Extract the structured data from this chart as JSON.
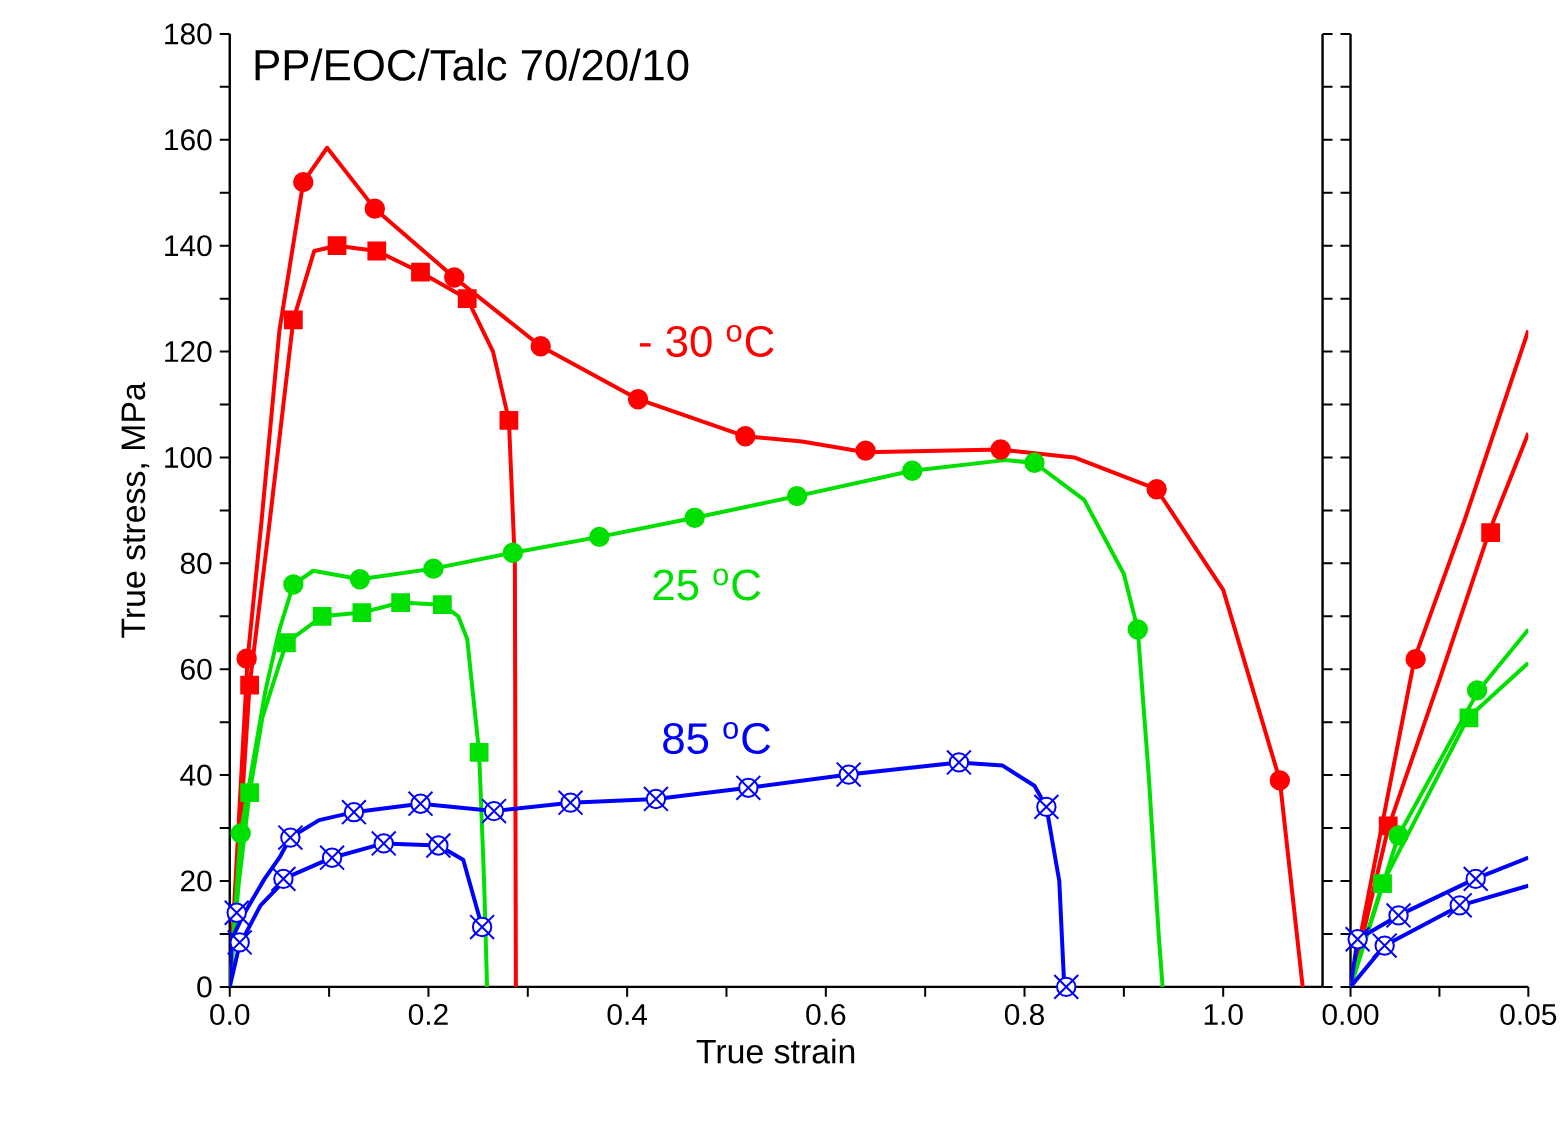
{
  "chart_data": [
    {
      "type": "line",
      "title": "PP/EOC/Talc 70/20/10",
      "xlabel": "True strain",
      "ylabel": "True stress, MPa",
      "xlim": [
        0,
        1.1
      ],
      "ylim": [
        0,
        180
      ],
      "xticks": [
        {
          "value": 0,
          "label": "0.0"
        },
        {
          "value": 0.1,
          "label": null
        },
        {
          "value": 0.2,
          "label": "0.2"
        },
        {
          "value": 0.3,
          "label": null
        },
        {
          "value": 0.4,
          "label": "0.4"
        },
        {
          "value": 0.5,
          "label": null
        },
        {
          "value": 0.6,
          "label": "0.6"
        },
        {
          "value": 0.7,
          "label": null
        },
        {
          "value": 0.8,
          "label": "0.8"
        },
        {
          "value": 0.9,
          "label": null
        },
        {
          "value": 1.0,
          "label": "1.0"
        }
      ],
      "yticks": [
        0,
        {
          "value": 10,
          "label": null
        },
        20,
        {
          "value": 30,
          "label": null
        },
        40,
        {
          "value": 50,
          "label": null
        },
        60,
        {
          "value": 70,
          "label": null
        },
        80,
        {
          "value": 90,
          "label": null
        },
        100,
        {
          "value": 110,
          "label": null
        },
        120,
        {
          "value": 130,
          "label": null
        },
        140,
        {
          "value": 150,
          "label": null
        },
        160,
        {
          "value": 170,
          "label": null
        },
        180
      ],
      "grid": false,
      "line_style": "solid",
      "annotations": [
        "- 30 $^{o}$C",
        "25 $^{o}$C",
        "85 $^{o}$C"
      ],
      "series": [
        {
          "color": "#ff0000",
          "x": [
            0,
            0.0087,
            0.018,
            0.032,
            0.05,
            0.074,
            0.098,
            0.146,
            0.226,
            0.313,
            0.411,
            0.519,
            0.576,
            0.64,
            0.776,
            0.85,
            0.933,
            1.0,
            1.057,
            1.08
          ],
          "values": [
            0,
            30,
            62,
            88,
            124,
            152,
            158.5,
            147,
            134,
            121,
            111,
            104,
            103,
            101,
            101.5,
            100,
            94,
            75,
            39,
            0
          ]
        },
        {
          "color": "#ff0000",
          "x": [
            0,
            0.0106,
            0.02,
            0.039,
            0.064,
            0.085,
            0.108,
            0.148,
            0.192,
            0.239,
            0.265,
            0.281,
            0.287,
            0.288
          ],
          "values": [
            0,
            30,
            57,
            86,
            126,
            139,
            140,
            139,
            135,
            130,
            120,
            107,
            80,
            0
          ]
        },
        {
          "color": "#00e000",
          "x": [
            0,
            0.011,
            0.036,
            0.05,
            0.064,
            0.084,
            0.131,
            0.205,
            0.285,
            0.372,
            0.468,
            0.571,
            0.687,
            0.78,
            0.81,
            0.86,
            0.9,
            0.914,
            0.925,
            0.935,
            0.939
          ],
          "values": [
            0,
            29,
            56,
            67.5,
            76,
            78.6,
            77,
            79,
            82,
            85,
            88.6,
            92.7,
            97.5,
            99.5,
            99,
            92,
            78,
            67.5,
            40,
            10,
            0
          ]
        },
        {
          "color": "#00e000",
          "x": [
            0,
            0.009,
            0.02,
            0.033,
            0.05,
            0.057,
            0.093,
            0.133,
            0.172,
            0.214,
            0.23,
            0.239,
            0.251,
            0.256,
            0.259
          ],
          "values": [
            0,
            19.5,
            36.7,
            51,
            61,
            65,
            70,
            70.7,
            72.6,
            72.2,
            70,
            65.7,
            44.3,
            20,
            0
          ]
        },
        {
          "color": "#0000ff",
          "x": [
            0,
            0.002,
            0.0135,
            0.035,
            0.05,
            0.061,
            0.09,
            0.125,
            0.192,
            0.266,
            0.343,
            0.429,
            0.522,
            0.623,
            0.734,
            0.778,
            0.81,
            0.822,
            0.835,
            0.84
          ],
          "values": [
            0,
            9,
            13.5,
            20.4,
            24.4,
            28.2,
            31.5,
            33,
            34.6,
            33.2,
            34.8,
            35.5,
            37.6,
            40.1,
            42.4,
            41.8,
            38,
            34,
            20,
            0
          ]
        },
        {
          "color": "#0000ff",
          "x": [
            0,
            0.0096,
            0.031,
            0.05,
            0.054,
            0.103,
            0.155,
            0.21,
            0.235,
            0.254
          ],
          "values": [
            0,
            7.8,
            15.4,
            19.1,
            20.4,
            24.4,
            27.1,
            26.7,
            24,
            11.3
          ]
        },
        {
          "type": "scatter",
          "color": "#ff0000",
          "marker": "circle",
          "x": [
            0.017,
            0.074,
            0.146,
            0.226,
            0.313,
            0.411,
            0.519,
            0.64,
            0.776,
            0.933,
            1.057
          ],
          "values": [
            62,
            152,
            147,
            134,
            121,
            111,
            104,
            101.3,
            101.5,
            94,
            39
          ]
        },
        {
          "type": "scatter",
          "color": "#ff0000",
          "marker": "square",
          "x": [
            0.02,
            0.064,
            0.108,
            0.148,
            0.192,
            0.239,
            0.281
          ],
          "values": [
            57,
            126,
            140,
            139,
            135,
            130,
            107
          ]
        },
        {
          "type": "scatter",
          "color": "#00e000",
          "marker": "circle",
          "x": [
            0.011,
            0.064,
            0.131,
            0.205,
            0.285,
            0.372,
            0.468,
            0.571,
            0.687,
            0.81,
            0.914
          ],
          "values": [
            29,
            76,
            77,
            79,
            82,
            85,
            88.6,
            92.7,
            97.5,
            99,
            67.5
          ]
        },
        {
          "type": "scatter",
          "color": "#00e000",
          "marker": "square",
          "x": [
            0.02,
            0.057,
            0.093,
            0.133,
            0.172,
            0.214,
            0.251
          ],
          "values": [
            36.7,
            65,
            70,
            70.7,
            72.6,
            72.2,
            44.3
          ]
        },
        {
          "type": "scatter",
          "color": "#0000ff",
          "marker": "cross",
          "x": [
            0.007,
            0.061,
            0.125,
            0.192,
            0.266,
            0.343,
            0.429,
            0.522,
            0.623,
            0.734,
            0.822,
            0.842
          ],
          "values": [
            14,
            28.2,
            33,
            34.6,
            33.2,
            34.8,
            35.5,
            37.6,
            40.1,
            42.4,
            34,
            0
          ]
        },
        {
          "type": "scatter",
          "color": "#0000ff",
          "marker": "cross",
          "x": [
            0.01,
            0.054,
            0.103,
            0.155,
            0.21,
            0.254
          ],
          "values": [
            8.4,
            20.4,
            24.4,
            27.1,
            26.7,
            11.3
          ]
        }
      ]
    },
    {
      "type": "line",
      "xlim": [
        0,
        0.05
      ],
      "ylim": [
        0,
        180
      ],
      "tick_labels": "x",
      "xticks": [
        {
          "value": 0,
          "label": "0.00"
        },
        {
          "value": 0.025,
          "label": null
        },
        {
          "value": 0.05,
          "label": "0.05"
        }
      ],
      "yticks": [
        {
          "value": 0,
          "label": null
        },
        {
          "value": 10,
          "label": null
        },
        {
          "value": 20,
          "label": null
        },
        {
          "value": 30,
          "label": null
        },
        {
          "value": 40,
          "label": null
        },
        {
          "value": 50,
          "label": null
        },
        {
          "value": 60,
          "label": null
        },
        {
          "value": 70,
          "label": null
        },
        {
          "value": 80,
          "label": null
        },
        {
          "value": 90,
          "label": null
        },
        {
          "value": 100,
          "label": null
        },
        {
          "value": 110,
          "label": null
        },
        {
          "value": 120,
          "label": null
        },
        {
          "value": 130,
          "label": null
        },
        {
          "value": 140,
          "label": null
        },
        {
          "value": 150,
          "label": null
        },
        {
          "value": 160,
          "label": null
        },
        {
          "value": 170,
          "label": null
        },
        {
          "value": 180,
          "label": null
        }
      ],
      "grid": false,
      "line_style": "solid",
      "series": [
        {
          "color": "#ff0000",
          "x": [
            0,
            0.0087,
            0.018,
            0.032,
            0.05
          ],
          "values": [
            0,
            30,
            62,
            88,
            124
          ]
        },
        {
          "color": "#ff0000",
          "x": [
            0,
            0.0106,
            0.025,
            0.039,
            0.05
          ],
          "values": [
            0,
            30,
            58,
            86,
            104.6
          ]
        },
        {
          "color": "#00e000",
          "x": [
            0,
            0.0135,
            0.036,
            0.05
          ],
          "values": [
            0,
            28.6,
            56,
            67.5
          ]
        },
        {
          "color": "#00e000",
          "x": [
            0,
            0.009,
            0.033,
            0.05
          ],
          "values": [
            0,
            19.5,
            50.8,
            61.2
          ]
        },
        {
          "color": "#0000ff",
          "x": [
            0,
            0.002,
            0.0135,
            0.035,
            0.05
          ],
          "values": [
            0,
            9,
            13.5,
            20.4,
            24.4
          ]
        },
        {
          "color": "#0000ff",
          "x": [
            0,
            0.0096,
            0.031,
            0.05
          ],
          "values": [
            0,
            7.8,
            15.4,
            19.1
          ]
        },
        {
          "type": "scatter",
          "color": "#ff0000",
          "marker": "circle",
          "x": [
            0.0183
          ],
          "values": [
            61.9
          ]
        },
        {
          "type": "scatter",
          "color": "#ff0000",
          "marker": "square",
          "x": [
            0.0106,
            0.0394
          ],
          "values": [
            30.4,
            85.8
          ]
        },
        {
          "type": "scatter",
          "color": "#00e000",
          "marker": "circle",
          "x": [
            0.0135,
            0.0356
          ],
          "values": [
            28.6,
            56
          ]
        },
        {
          "type": "scatter",
          "color": "#00e000",
          "marker": "square",
          "x": [
            0.009,
            0.0333
          ],
          "values": [
            19.5,
            50.8
          ]
        },
        {
          "type": "scatter",
          "color": "#0000ff",
          "marker": "cross",
          "x": [
            0.002,
            0.0135,
            0.0352
          ],
          "values": [
            9,
            13.5,
            20.4
          ]
        },
        {
          "type": "scatter",
          "color": "#0000ff",
          "marker": "cross",
          "x": [
            0.0096,
            0.0307
          ],
          "values": [
            7.8,
            15.4
          ]
        }
      ]
    }
  ]
}
